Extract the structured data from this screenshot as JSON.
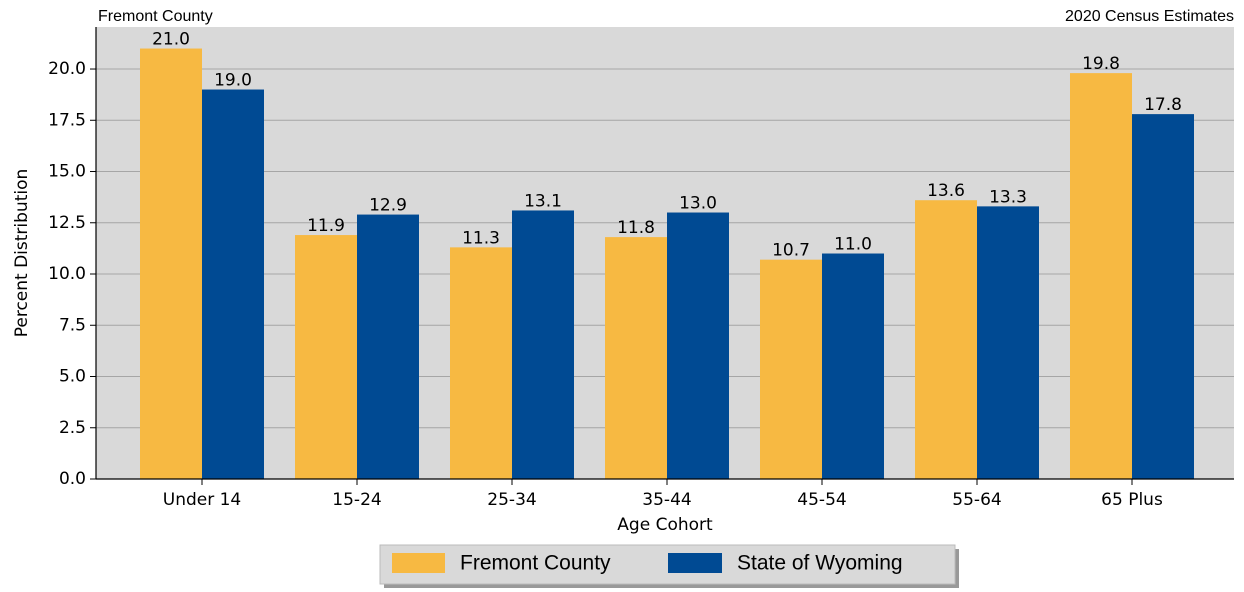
{
  "chart_data": {
    "type": "bar",
    "title_left": "Fremont County",
    "title_right": "2020 Census Estimates",
    "x_label": "Age Cohort",
    "y_label": "Percent Distribution",
    "categories": [
      "Under 14",
      "15-24",
      "25-34",
      "35-44",
      "45-54",
      "55-64",
      "65 Plus"
    ],
    "series": [
      {
        "name": "Fremont County",
        "color": "#f7b942",
        "values": [
          21.0,
          11.9,
          11.3,
          11.8,
          10.7,
          13.6,
          19.8
        ],
        "value_labels": [
          "21.0",
          "11.9",
          "11.3",
          "11.8",
          "10.7",
          "13.6",
          "19.8"
        ]
      },
      {
        "name": "State of Wyoming",
        "color": "#004a93",
        "values": [
          19.0,
          12.9,
          13.1,
          13.0,
          11.0,
          13.3,
          17.8
        ],
        "value_labels": [
          "19.0",
          "12.9",
          "13.1",
          "13.0",
          "11.0",
          "13.3",
          "17.8"
        ]
      }
    ],
    "ylim": [
      0,
      22.05
    ],
    "yticks": [
      {
        "value": 0,
        "label": "0.0"
      },
      2.5,
      {
        "value": 5,
        "label": "5.0"
      },
      7.5,
      {
        "value": 10,
        "label": "10.0"
      },
      12.5,
      {
        "value": 15,
        "label": "15.0"
      },
      17.5,
      {
        "value": 20,
        "label": "20.0"
      }
    ],
    "grid": true,
    "legend": "bottom"
  }
}
